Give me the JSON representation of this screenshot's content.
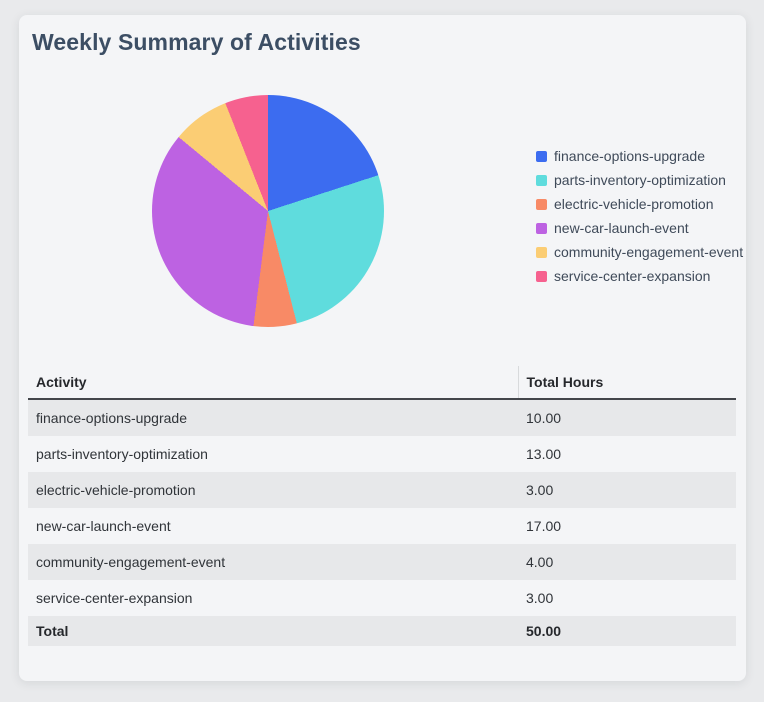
{
  "page": {
    "background": "#e9eaec",
    "card_background": "#f4f5f7"
  },
  "header": {
    "title": "Weekly Summary of Activities",
    "title_color": "#3c4e64"
  },
  "chart_data": {
    "type": "pie",
    "title": "Weekly Summary of Activities",
    "categories": [
      "finance-options-upgrade",
      "parts-inventory-optimization",
      "electric-vehicle-promotion",
      "new-car-launch-event",
      "community-engagement-event",
      "service-center-expansion"
    ],
    "values": [
      10,
      13,
      3,
      17,
      4,
      3
    ],
    "total": 50,
    "colors": [
      "#3c6cf0",
      "#5fdcdd",
      "#f88a66",
      "#bd62e2",
      "#fbcd74",
      "#f6618f"
    ],
    "legend_position": "right",
    "start_angle_deg": 0,
    "direction": "clockwise"
  },
  "table": {
    "columns": [
      "Activity",
      "Total Hours"
    ],
    "rows": [
      {
        "activity": "finance-options-upgrade",
        "hours": "10.00"
      },
      {
        "activity": "parts-inventory-optimization",
        "hours": "13.00"
      },
      {
        "activity": "electric-vehicle-promotion",
        "hours": "3.00"
      },
      {
        "activity": "new-car-launch-event",
        "hours": "17.00"
      },
      {
        "activity": "community-engagement-event",
        "hours": "4.00"
      },
      {
        "activity": "service-center-expansion",
        "hours": "3.00"
      }
    ],
    "total_row": {
      "activity": "Total",
      "hours": "50.00"
    }
  }
}
